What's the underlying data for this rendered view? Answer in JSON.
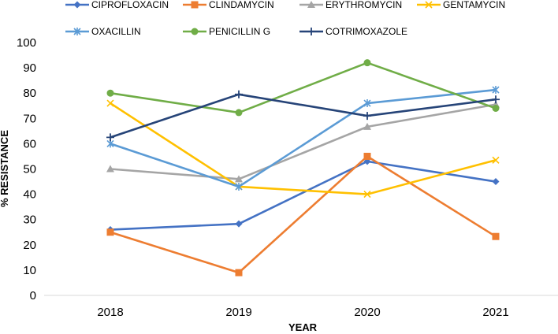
{
  "chart_data": {
    "type": "line",
    "title": "",
    "xlabel": "YEAR",
    "ylabel": "% RESISTANCE",
    "categories": [
      "2018",
      "2019",
      "2020",
      "2021"
    ],
    "ylim": [
      0,
      100
    ],
    "yticks": [
      0,
      10,
      20,
      30,
      40,
      50,
      60,
      70,
      80,
      90,
      100
    ],
    "grid": false,
    "legend_position": "top",
    "series": [
      {
        "name": "CIPROFLOXACIN",
        "color": "#4472C4",
        "marker": "diamond",
        "values": [
          26,
          28.3,
          53,
          45
        ]
      },
      {
        "name": "CLINDAMYCIN",
        "color": "#ED7D31",
        "marker": "square",
        "values": [
          25,
          9,
          55,
          23.3
        ]
      },
      {
        "name": "ERYTHROMYCIN",
        "color": "#A5A5A5",
        "marker": "triangle",
        "values": [
          50,
          46,
          66.7,
          75.5
        ]
      },
      {
        "name": "GENTAMYCIN",
        "color": "#FFC000",
        "marker": "x",
        "values": [
          76,
          43,
          40,
          53.5
        ]
      },
      {
        "name": "OXACILLIN",
        "color": "#5B9BD5",
        "marker": "star",
        "values": [
          60,
          43,
          76,
          81.3
        ]
      },
      {
        "name": "PENICILLIN G",
        "color": "#70AD47",
        "marker": "circle",
        "values": [
          80,
          72.3,
          92,
          74
        ]
      },
      {
        "name": "COTRIMOXAZOLE",
        "color": "#264478",
        "marker": "plus",
        "values": [
          62.5,
          79.5,
          71,
          77.5
        ]
      }
    ]
  }
}
